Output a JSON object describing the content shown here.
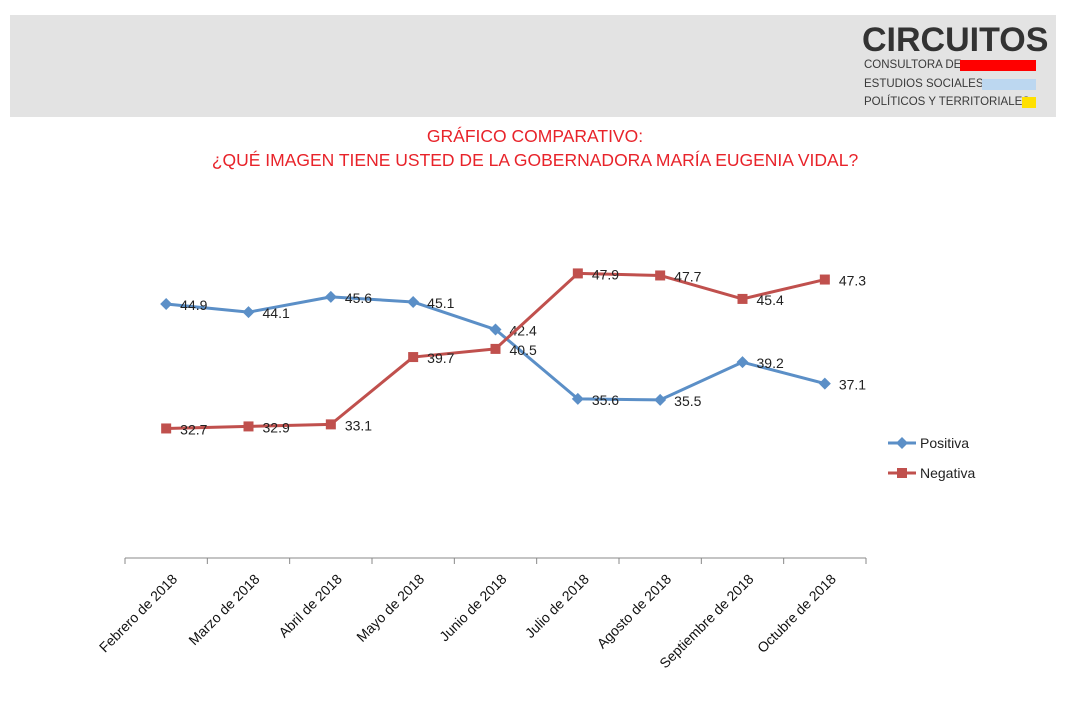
{
  "logo": {
    "name": "CIRCUITOS",
    "line1": "CONSULTORA DE",
    "line2": "ESTUDIOS SOCIALES,",
    "line3": "POLÍTICOS Y TERRITORIALES",
    "colors": [
      "#ff0000",
      "#bcd7f0",
      "#ffe000"
    ]
  },
  "title": {
    "line1": "GRÁFICO COMPARATIVO:",
    "line2": "¿QUÉ IMAGEN TIENE USTED DE LA GOBERNADORA MARÍA EUGENIA VIDAL?"
  },
  "chart_data": {
    "type": "line",
    "categories": [
      "Febrero de 2018",
      "Marzo de 2018",
      "Abril de 2018",
      "Mayo de 2018",
      "Junio de 2018",
      "Julio de 2018",
      "Agosto de 2018",
      "Septiembre de 2018",
      "Octubre de 2018"
    ],
    "series": [
      {
        "name": "Positiva",
        "values": [
          44.9,
          44.1,
          45.6,
          45.1,
          42.4,
          35.6,
          35.5,
          39.2,
          37.1
        ],
        "color": "#5b8fc7",
        "marker": "diamond"
      },
      {
        "name": "Negativa",
        "values": [
          32.7,
          32.9,
          33.1,
          39.7,
          40.5,
          47.9,
          47.7,
          45.4,
          47.3
        ],
        "color": "#c0504d",
        "marker": "square"
      }
    ],
    "ylim": [
      20,
      60
    ],
    "grid": false,
    "legend": "right"
  }
}
